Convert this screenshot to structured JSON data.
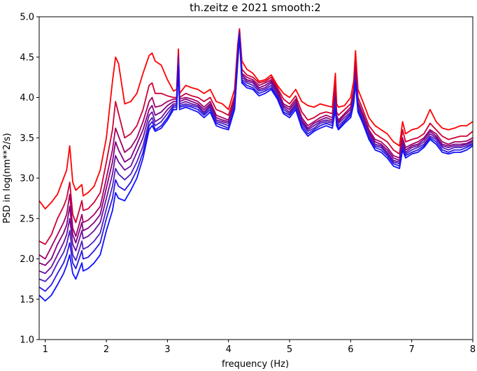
{
  "chart_data": {
    "type": "line",
    "title": "th.zeitz e 2021 smooth:2",
    "xlabel": "frequency (Hz)",
    "ylabel": "PSD in log(nm**2/s)",
    "xlim": [
      0.9,
      8.0
    ],
    "ylim": [
      1.0,
      5.0
    ],
    "x_ticks": [
      1,
      2,
      3,
      4,
      5,
      6,
      7,
      8
    ],
    "x_tick_labels": [
      "1",
      "2",
      "3",
      "4",
      "5",
      "6",
      "7",
      "8"
    ],
    "y_ticks": [
      1.0,
      1.5,
      2.0,
      2.5,
      3.0,
      3.5,
      4.0,
      4.5,
      5.0
    ],
    "y_tick_labels": [
      "1.0",
      "1.5",
      "2.0",
      "2.5",
      "3.0",
      "3.5",
      "4.0",
      "4.5",
      "5.0"
    ],
    "grid": false,
    "legend": "none",
    "colors": [
      "#ff0000",
      "#cc0033",
      "#a00066",
      "#800080",
      "#6a10a0",
      "#4a20c0",
      "#2a18e0",
      "#1010ff"
    ],
    "x": [
      0.9,
      1.0,
      1.1,
      1.2,
      1.3,
      1.35,
      1.4,
      1.45,
      1.5,
      1.6,
      1.62,
      1.7,
      1.8,
      1.9,
      2.0,
      2.1,
      2.15,
      2.2,
      2.3,
      2.4,
      2.5,
      2.6,
      2.7,
      2.75,
      2.8,
      2.9,
      3.0,
      3.1,
      3.15,
      3.18,
      3.2,
      3.3,
      3.4,
      3.5,
      3.6,
      3.7,
      3.8,
      3.9,
      4.0,
      4.1,
      4.15,
      4.18,
      4.22,
      4.3,
      4.4,
      4.5,
      4.6,
      4.7,
      4.8,
      4.9,
      5.0,
      5.1,
      5.2,
      5.3,
      5.4,
      5.5,
      5.6,
      5.7,
      5.75,
      5.77,
      5.8,
      5.9,
      6.0,
      6.05,
      6.08,
      6.12,
      6.2,
      6.3,
      6.4,
      6.5,
      6.6,
      6.7,
      6.8,
      6.85,
      6.9,
      7.0,
      7.1,
      7.2,
      7.3,
      7.4,
      7.5,
      7.6,
      7.7,
      7.8,
      7.9,
      8.0
    ],
    "series": [
      {
        "values": [
          2.72,
          2.62,
          2.7,
          2.8,
          3.0,
          3.1,
          3.4,
          2.95,
          2.85,
          2.92,
          2.78,
          2.82,
          2.9,
          3.1,
          3.5,
          4.2,
          4.5,
          4.42,
          3.92,
          3.95,
          4.05,
          4.3,
          4.52,
          4.55,
          4.45,
          4.4,
          4.22,
          4.08,
          4.1,
          4.6,
          4.05,
          4.15,
          4.12,
          4.1,
          4.05,
          4.1,
          3.95,
          3.92,
          3.85,
          4.1,
          4.65,
          4.85,
          4.45,
          4.35,
          4.3,
          4.2,
          4.22,
          4.28,
          4.15,
          4.05,
          4.0,
          4.1,
          3.95,
          3.9,
          3.88,
          3.92,
          3.9,
          3.88,
          4.3,
          3.92,
          3.88,
          3.9,
          4.0,
          4.2,
          4.58,
          4.1,
          3.95,
          3.75,
          3.65,
          3.6,
          3.55,
          3.45,
          3.4,
          3.7,
          3.55,
          3.6,
          3.62,
          3.68,
          3.85,
          3.7,
          3.62,
          3.6,
          3.62,
          3.65,
          3.65,
          3.7
        ]
      },
      {
        "values": [
          2.22,
          2.18,
          2.3,
          2.5,
          2.65,
          2.75,
          2.95,
          2.55,
          2.45,
          2.72,
          2.6,
          2.62,
          2.7,
          2.82,
          3.2,
          3.6,
          3.95,
          3.8,
          3.5,
          3.55,
          3.65,
          3.85,
          4.15,
          4.18,
          4.05,
          4.05,
          4.02,
          4.0,
          4.0,
          4.55,
          4.0,
          4.05,
          4.02,
          4.0,
          3.95,
          4.0,
          3.85,
          3.82,
          3.78,
          4.02,
          4.6,
          4.85,
          4.35,
          4.28,
          4.25,
          4.18,
          4.2,
          4.25,
          4.12,
          3.98,
          3.92,
          4.02,
          3.82,
          3.72,
          3.75,
          3.8,
          3.82,
          3.8,
          4.15,
          3.82,
          3.78,
          3.85,
          3.92,
          4.1,
          4.45,
          4.0,
          3.85,
          3.65,
          3.55,
          3.5,
          3.45,
          3.35,
          3.3,
          3.6,
          3.45,
          3.48,
          3.5,
          3.55,
          3.68,
          3.6,
          3.52,
          3.48,
          3.5,
          3.52,
          3.52,
          3.58
        ]
      },
      {
        "values": [
          2.05,
          2.0,
          2.15,
          2.3,
          2.45,
          2.55,
          2.8,
          2.38,
          2.28,
          2.55,
          2.45,
          2.48,
          2.55,
          2.65,
          3.0,
          3.35,
          3.62,
          3.52,
          3.32,
          3.38,
          3.5,
          3.7,
          3.95,
          4.0,
          3.88,
          3.9,
          3.95,
          3.98,
          3.98,
          4.52,
          3.98,
          4.0,
          3.98,
          3.95,
          3.88,
          3.95,
          3.78,
          3.75,
          3.72,
          3.98,
          4.55,
          4.82,
          4.3,
          4.25,
          4.22,
          4.15,
          4.18,
          4.22,
          4.1,
          3.92,
          3.88,
          3.98,
          3.75,
          3.65,
          3.7,
          3.75,
          3.78,
          3.75,
          4.05,
          3.78,
          3.72,
          3.8,
          3.88,
          4.05,
          4.35,
          3.95,
          3.8,
          3.6,
          3.48,
          3.45,
          3.38,
          3.28,
          3.25,
          3.5,
          3.38,
          3.42,
          3.45,
          3.5,
          3.6,
          3.55,
          3.45,
          3.42,
          3.45,
          3.45,
          3.46,
          3.5
        ]
      },
      {
        "values": [
          1.95,
          1.92,
          2.0,
          2.18,
          2.32,
          2.42,
          2.65,
          2.3,
          2.2,
          2.45,
          2.35,
          2.38,
          2.45,
          2.55,
          2.88,
          3.2,
          3.45,
          3.35,
          3.2,
          3.25,
          3.42,
          3.6,
          3.85,
          3.9,
          3.78,
          3.82,
          3.9,
          3.95,
          3.95,
          4.5,
          3.95,
          3.98,
          3.95,
          3.92,
          3.85,
          3.92,
          3.75,
          3.72,
          3.7,
          3.95,
          4.52,
          4.8,
          4.28,
          4.22,
          4.2,
          4.12,
          4.15,
          4.2,
          4.08,
          3.9,
          3.85,
          3.95,
          3.72,
          3.62,
          3.68,
          3.72,
          3.75,
          3.72,
          4.0,
          3.75,
          3.7,
          3.78,
          3.85,
          4.02,
          4.3,
          3.92,
          3.78,
          3.58,
          3.45,
          3.42,
          3.35,
          3.25,
          3.22,
          3.45,
          3.35,
          3.4,
          3.42,
          3.48,
          3.58,
          3.52,
          3.42,
          3.4,
          3.42,
          3.42,
          3.43,
          3.47
        ]
      },
      {
        "values": [
          1.85,
          1.82,
          1.9,
          2.05,
          2.2,
          2.3,
          2.5,
          2.18,
          2.1,
          2.35,
          2.25,
          2.28,
          2.35,
          2.45,
          2.75,
          3.05,
          3.28,
          3.2,
          3.1,
          3.15,
          3.32,
          3.5,
          3.78,
          3.82,
          3.7,
          3.75,
          3.85,
          3.92,
          3.92,
          4.45,
          3.92,
          3.95,
          3.92,
          3.9,
          3.82,
          3.9,
          3.72,
          3.7,
          3.68,
          3.92,
          4.5,
          4.8,
          4.25,
          4.2,
          4.18,
          4.1,
          4.12,
          4.18,
          4.05,
          3.88,
          3.82,
          3.92,
          3.7,
          3.6,
          3.65,
          3.7,
          3.72,
          3.7,
          3.95,
          3.72,
          3.68,
          3.75,
          3.82,
          4.0,
          4.25,
          3.9,
          3.75,
          3.55,
          3.42,
          3.4,
          3.32,
          3.22,
          3.2,
          3.42,
          3.32,
          3.38,
          3.4,
          3.45,
          3.55,
          3.5,
          3.4,
          3.38,
          3.4,
          3.4,
          3.42,
          3.45
        ]
      },
      {
        "values": [
          1.75,
          1.72,
          1.8,
          1.95,
          2.08,
          2.18,
          2.35,
          2.05,
          1.98,
          2.22,
          2.12,
          2.15,
          2.22,
          2.32,
          2.62,
          2.9,
          3.12,
          3.05,
          2.98,
          3.05,
          3.2,
          3.4,
          3.7,
          3.75,
          3.65,
          3.7,
          3.8,
          3.9,
          3.9,
          4.42,
          3.9,
          3.92,
          3.9,
          3.88,
          3.8,
          3.88,
          3.7,
          3.68,
          3.65,
          3.9,
          4.48,
          4.78,
          4.22,
          4.18,
          4.15,
          4.08,
          4.1,
          4.15,
          4.02,
          3.85,
          3.8,
          3.9,
          3.68,
          3.58,
          3.62,
          3.68,
          3.7,
          3.68,
          3.92,
          3.7,
          3.65,
          3.72,
          3.8,
          3.98,
          4.22,
          3.88,
          3.72,
          3.52,
          3.4,
          3.38,
          3.3,
          3.2,
          3.18,
          3.4,
          3.3,
          3.35,
          3.38,
          3.42,
          3.52,
          3.48,
          3.38,
          3.35,
          3.38,
          3.38,
          3.4,
          3.43
        ]
      },
      {
        "values": [
          1.65,
          1.6,
          1.68,
          1.82,
          1.95,
          2.05,
          2.2,
          1.95,
          1.88,
          2.1,
          2.0,
          2.02,
          2.1,
          2.2,
          2.5,
          2.75,
          2.98,
          2.9,
          2.85,
          2.95,
          3.1,
          3.32,
          3.65,
          3.7,
          3.6,
          3.65,
          3.75,
          3.88,
          3.88,
          4.4,
          3.88,
          3.9,
          3.88,
          3.85,
          3.78,
          3.85,
          3.68,
          3.65,
          3.62,
          3.88,
          4.45,
          4.78,
          4.2,
          4.15,
          4.12,
          4.05,
          4.08,
          4.12,
          4.0,
          3.82,
          3.78,
          3.88,
          3.65,
          3.55,
          3.6,
          3.65,
          3.68,
          3.65,
          3.88,
          3.68,
          3.62,
          3.7,
          3.78,
          3.95,
          4.2,
          3.85,
          3.7,
          3.5,
          3.38,
          3.35,
          3.28,
          3.18,
          3.15,
          3.38,
          3.28,
          3.32,
          3.35,
          3.4,
          3.5,
          3.45,
          3.35,
          3.32,
          3.35,
          3.35,
          3.38,
          3.42
        ]
      },
      {
        "values": [
          1.55,
          1.48,
          1.55,
          1.68,
          1.82,
          1.92,
          2.05,
          1.82,
          1.75,
          1.95,
          1.85,
          1.88,
          1.95,
          2.05,
          2.35,
          2.6,
          2.82,
          2.75,
          2.72,
          2.85,
          3.0,
          3.25,
          3.6,
          3.65,
          3.58,
          3.62,
          3.72,
          3.85,
          3.85,
          4.38,
          3.85,
          3.88,
          3.85,
          3.82,
          3.75,
          3.82,
          3.65,
          3.62,
          3.6,
          3.85,
          4.42,
          4.75,
          4.18,
          4.12,
          4.1,
          4.02,
          4.05,
          4.1,
          3.98,
          3.8,
          3.75,
          3.85,
          3.62,
          3.52,
          3.58,
          3.62,
          3.65,
          3.62,
          3.85,
          3.65,
          3.6,
          3.68,
          3.75,
          3.92,
          4.18,
          3.82,
          3.68,
          3.48,
          3.35,
          3.32,
          3.25,
          3.15,
          3.12,
          3.35,
          3.25,
          3.3,
          3.32,
          3.38,
          3.48,
          3.42,
          3.32,
          3.3,
          3.32,
          3.32,
          3.35,
          3.4
        ]
      }
    ]
  }
}
